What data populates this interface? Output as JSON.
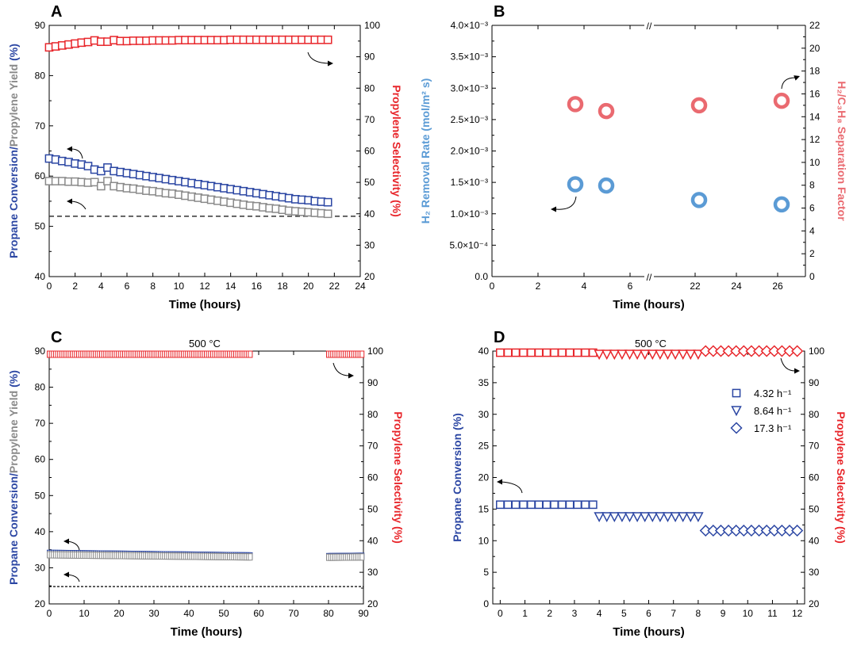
{
  "colors": {
    "blue": "#2b46a3",
    "red": "#e8262b",
    "gray": "#8a8a8a",
    "lightblue": "#5b9bd5",
    "pink": "#ea6a70",
    "black": "#000000"
  },
  "chart_data": [
    {
      "panel": "A",
      "type": "scatter",
      "xlabel": "Time (hours)",
      "xlim": [
        0,
        24
      ],
      "xticks": [
        "0",
        "2",
        "4",
        "6",
        "8",
        "10",
        "12",
        "14",
        "16",
        "18",
        "20",
        "22",
        "24"
      ],
      "ylabel_left_1": "Propane Conversion",
      "ylabel_left_sep": "/",
      "ylabel_left_2": "Propylene Yield",
      "ylabel_left_unit": " (%)",
      "ylim_left": [
        40,
        90
      ],
      "yticks_left": [
        "40",
        "50",
        "60",
        "70",
        "80",
        "90"
      ],
      "ylabel_right": "Propylene Selectivity (%)",
      "ylim_right": [
        20,
        100
      ],
      "yticks_right": [
        "20",
        "30",
        "40",
        "50",
        "60",
        "70",
        "80",
        "90",
        "100"
      ],
      "baseline_left": 52,
      "series": [
        {
          "name": "Propane Conversion",
          "axis": "left",
          "color": "blue",
          "marker": "square",
          "x": [
            0,
            0.5,
            1,
            1.5,
            2,
            2.5,
            3,
            3.5,
            4,
            4.5,
            5,
            5.5,
            6,
            6.5,
            7,
            7.5,
            8,
            8.5,
            9,
            9.5,
            10,
            10.5,
            11,
            11.5,
            12,
            12.5,
            13,
            13.5,
            14,
            14.5,
            15,
            15.5,
            16,
            16.5,
            17,
            17.5,
            18,
            18.5,
            19,
            19.5,
            20,
            20.5,
            21,
            21.5
          ],
          "y": [
            63.5,
            63.3,
            63.0,
            62.8,
            62.5,
            62.3,
            62.0,
            61.3,
            61.0,
            61.7,
            61.0,
            60.8,
            60.6,
            60.4,
            60.2,
            60.0,
            59.8,
            59.6,
            59.4,
            59.2,
            59.0,
            58.8,
            58.6,
            58.4,
            58.2,
            58.0,
            57.8,
            57.6,
            57.4,
            57.2,
            57.0,
            56.8,
            56.6,
            56.4,
            56.2,
            56.0,
            55.8,
            55.6,
            55.4,
            55.3,
            55.2,
            55.0,
            54.9,
            54.8
          ]
        },
        {
          "name": "Propylene Yield",
          "axis": "left",
          "color": "gray",
          "marker": "square",
          "x": [
            0,
            0.5,
            1,
            1.5,
            2,
            2.5,
            3,
            3.5,
            4,
            4.5,
            5,
            5.5,
            6,
            6.5,
            7,
            7.5,
            8,
            8.5,
            9,
            9.5,
            10,
            10.5,
            11,
            11.5,
            12,
            12.5,
            13,
            13.5,
            14,
            14.5,
            15,
            15.5,
            16,
            16.5,
            17,
            17.5,
            18,
            18.5,
            19,
            19.5,
            20,
            20.5,
            21,
            21.5
          ],
          "y": [
            59.0,
            59.0,
            59.0,
            58.9,
            58.9,
            58.8,
            58.7,
            58.8,
            58.0,
            59.0,
            58.0,
            57.8,
            57.6,
            57.5,
            57.3,
            57.1,
            57.0,
            56.8,
            56.6,
            56.5,
            56.3,
            56.1,
            55.9,
            55.7,
            55.5,
            55.3,
            55.1,
            54.9,
            54.7,
            54.5,
            54.3,
            54.1,
            54.0,
            53.8,
            53.6,
            53.5,
            53.3,
            53.1,
            53.0,
            52.9,
            52.8,
            52.7,
            52.6,
            52.5
          ]
        },
        {
          "name": "Propylene Selectivity",
          "axis": "right",
          "color": "red",
          "marker": "square",
          "x": [
            0,
            0.5,
            1,
            1.5,
            2,
            2.5,
            3,
            3.5,
            4,
            4.5,
            5,
            5.5,
            6,
            6.5,
            7,
            7.5,
            8,
            8.5,
            9,
            9.5,
            10,
            10.5,
            11,
            11.5,
            12,
            12.5,
            13,
            13.5,
            14,
            14.5,
            15,
            15.5,
            16,
            16.5,
            17,
            17.5,
            18,
            18.5,
            19,
            19.5,
            20,
            20.5,
            21,
            21.5
          ],
          "y": [
            93.0,
            93.3,
            93.6,
            93.9,
            94.2,
            94.5,
            94.7,
            95.2,
            94.8,
            94.8,
            95.3,
            95.0,
            95.0,
            95.1,
            95.1,
            95.1,
            95.2,
            95.2,
            95.2,
            95.2,
            95.3,
            95.3,
            95.3,
            95.3,
            95.3,
            95.3,
            95.3,
            95.3,
            95.4,
            95.4,
            95.4,
            95.4,
            95.4,
            95.4,
            95.4,
            95.4,
            95.4,
            95.4,
            95.4,
            95.4,
            95.4,
            95.4,
            95.4,
            95.4
          ]
        }
      ]
    },
    {
      "panel": "B",
      "type": "scatter",
      "xlabel": "Time (hours)",
      "xbreak": "//",
      "xticks_left": [
        "0",
        "2",
        "4",
        "6"
      ],
      "xticks_right": [
        "22",
        "24",
        "26"
      ],
      "ylabel_left": "H₂ Removal Rate (mol/m² s)",
      "yticks_left": [
        "0.0",
        "5.0×10⁻⁴",
        "1.0×10⁻³",
        "1.5×10⁻³",
        "2.0×10⁻³",
        "2.5×10⁻³",
        "3.0×10⁻³",
        "3.5×10⁻³",
        "4.0×10⁻³"
      ],
      "ylim_left": [
        0,
        0.004
      ],
      "ylabel_right": "H₂/C₃H₈ Separation Factor",
      "yticks_right": [
        "0",
        "2",
        "4",
        "6",
        "8",
        "10",
        "12",
        "14",
        "16",
        "18",
        "20",
        "22"
      ],
      "ylim_right": [
        0,
        22
      ],
      "series": [
        {
          "name": "H2 Removal Rate",
          "axis": "left",
          "color": "lightblue",
          "marker": "circle",
          "x": [
            3.7,
            5.0,
            22.4,
            26.0
          ],
          "y": [
            0.00147,
            0.00145,
            0.00122,
            0.00115
          ]
        },
        {
          "name": "H2/C3H8 Separation Factor",
          "axis": "right",
          "color": "pink",
          "marker": "circle",
          "x": [
            3.7,
            5.0,
            22.4,
            26.0
          ],
          "y": [
            15.1,
            14.5,
            15.0,
            15.4
          ]
        }
      ]
    },
    {
      "panel": "C",
      "type": "scatter",
      "title": "500 °C",
      "xlabel": "Time (hours)",
      "xlim": [
        0,
        90
      ],
      "xticks": [
        "0",
        "10",
        "20",
        "30",
        "40",
        "50",
        "60",
        "70",
        "80",
        "90"
      ],
      "ylabel_left_1": "Propane Conversion",
      "ylabel_left_sep": "/",
      "ylabel_left_2": "Propylene Yield",
      "ylabel_left_unit": " (%)",
      "ylim_left": [
        20,
        90
      ],
      "yticks_left": [
        "20",
        "30",
        "40",
        "50",
        "60",
        "70",
        "80",
        "90"
      ],
      "ylabel_right": "Propylene Selectivity (%)",
      "ylim_right": [
        20,
        100
      ],
      "yticks_right": [
        "20",
        "30",
        "40",
        "50",
        "60",
        "70",
        "80",
        "90",
        "100"
      ],
      "baseline_left": 24.8,
      "series": [
        {
          "name": "Propane Conversion",
          "axis": "left",
          "color": "blue",
          "marker": "square",
          "segments": [
            [
              0,
              58,
              34.0,
              33.3
            ],
            [
              80,
              90,
              33.1,
              33.2
            ]
          ]
        },
        {
          "name": "Propylene Yield",
          "axis": "left",
          "color": "gray",
          "marker": "square",
          "segments": [
            [
              0,
              58,
              33.6,
              33.0
            ],
            [
              80,
              90,
              32.9,
              33.0
            ]
          ]
        },
        {
          "name": "Propylene Selectivity",
          "axis": "right",
          "color": "red",
          "marker": "square",
          "segments": [
            [
              0,
              58,
              99.0,
              99.0
            ],
            [
              80,
              90,
              99.0,
              99.0
            ]
          ]
        }
      ]
    },
    {
      "panel": "D",
      "type": "scatter",
      "title": "500 °C",
      "xlabel": "Time (hours)",
      "xlim": [
        -0.3,
        12.3
      ],
      "xticks": [
        "0",
        "1",
        "2",
        "3",
        "4",
        "5",
        "6",
        "7",
        "8",
        "9",
        "10",
        "11",
        "12"
      ],
      "ylabel_left": "Propane Conversion (%)",
      "ylim_left": [
        0,
        40
      ],
      "yticks_left": [
        "0",
        "5",
        "10",
        "15",
        "20",
        "25",
        "30",
        "35",
        "40"
      ],
      "ylabel_right": "Propylene Selectivity (%)",
      "ylim_right": [
        20,
        100
      ],
      "yticks_right": [
        "20",
        "30",
        "40",
        "50",
        "60",
        "70",
        "80",
        "90",
        "100"
      ],
      "legend": [
        {
          "marker": "square",
          "label": "4.32 h⁻¹"
        },
        {
          "marker": "triangle",
          "label": "8.64  h⁻¹"
        },
        {
          "marker": "diamond",
          "label": "17.3  h⁻¹"
        }
      ],
      "series": [
        {
          "name": "Conversion 4.32",
          "axis": "left",
          "color": "blue",
          "marker": "square",
          "x_start": 0,
          "x_end": 3.75,
          "n": 13,
          "y": 15.7
        },
        {
          "name": "Conversion 8.64",
          "axis": "left",
          "color": "blue",
          "marker": "triangle",
          "x_start": 4.0,
          "x_end": 8.0,
          "n": 14,
          "y": 13.8
        },
        {
          "name": "Conversion 17.3",
          "axis": "left",
          "color": "blue",
          "marker": "diamond",
          "x_start": 8.3,
          "x_end": 12.0,
          "n": 13,
          "y": 11.6
        },
        {
          "name": "Selectivity 4.32",
          "axis": "right",
          "color": "red",
          "marker": "square",
          "x_start": 0,
          "x_end": 3.75,
          "n": 13,
          "y": 99.5
        },
        {
          "name": "Selectivity 8.64",
          "axis": "right",
          "color": "red",
          "marker": "triangle",
          "x_start": 4.0,
          "x_end": 8.0,
          "n": 14,
          "y": 99.0
        },
        {
          "name": "Selectivity 17.3",
          "axis": "right",
          "color": "red",
          "marker": "diamond",
          "x_start": 8.3,
          "x_end": 12.0,
          "n": 13,
          "y": 100
        }
      ]
    }
  ]
}
